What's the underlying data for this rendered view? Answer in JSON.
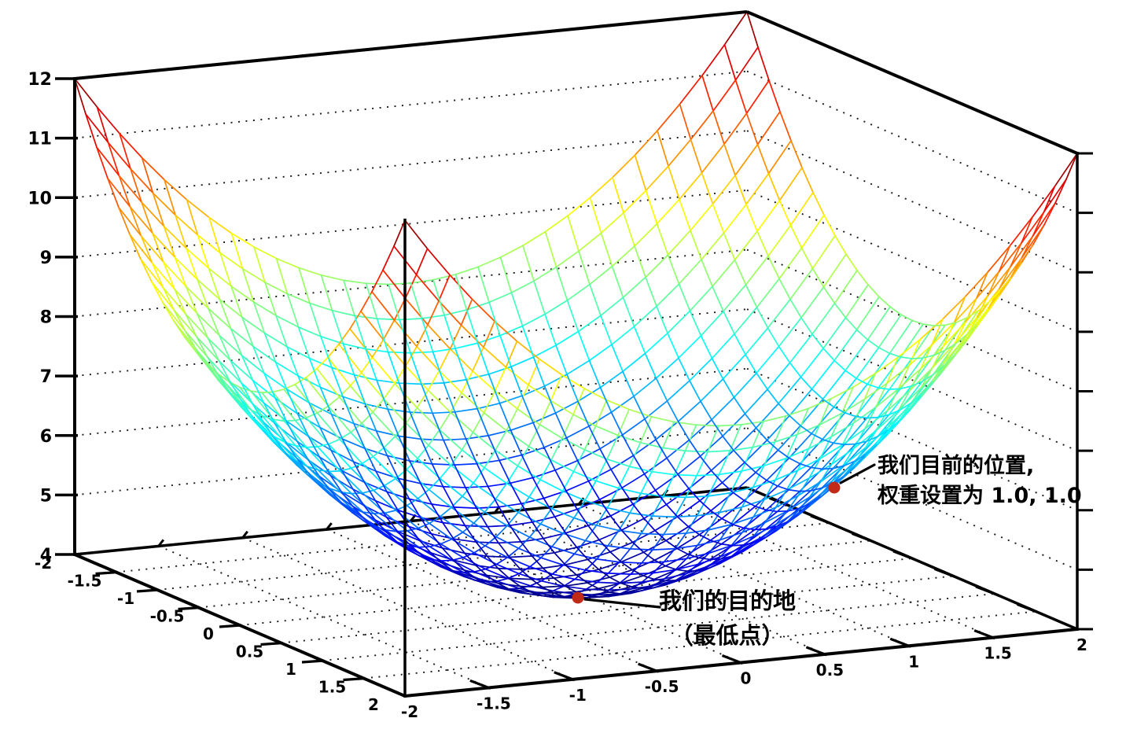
{
  "figure": {
    "background": "#ffffff"
  },
  "chart_data": {
    "type": "surface",
    "projection": "3d",
    "title": "",
    "surface": {
      "z_function": "z = x^2 + y^2 + 4",
      "x_domain": [
        -2,
        2
      ],
      "y_domain": [
        -2,
        2
      ],
      "z_range": [
        4,
        12
      ],
      "grid_divisions": 30,
      "colormap": "jet",
      "style": "wireframe"
    },
    "axes": {
      "x_tick_values": [
        -2,
        -1.5,
        -1,
        -0.5,
        0,
        0.5,
        1,
        1.5,
        2
      ],
      "x_tick_labels": [
        "-2",
        "-1.5",
        "-1",
        "-0.5",
        "0",
        "0.5",
        "1",
        "1.5",
        "2"
      ],
      "y_tick_values": [
        -2,
        -1.5,
        -1,
        -0.5,
        0,
        0.5,
        1,
        1.5,
        2
      ],
      "y_tick_labels": [
        "-2",
        "-1.5",
        "-1",
        "-0.5",
        "0",
        "0.5",
        "1",
        "1.5",
        "2"
      ],
      "z_tick_values": [
        4,
        5,
        6,
        7,
        8,
        9,
        10,
        11,
        12
      ],
      "z_tick_labels": [
        "4",
        "5",
        "6",
        "7",
        "8",
        "9",
        "10",
        "11",
        "12"
      ],
      "wall_grid": "dotted",
      "floor_grid": "dotted",
      "axis_color": "#000000"
    },
    "annotations": [
      {
        "id": "current-position",
        "text_lines": [
          "我们目前的位置,",
          "权重设置为 1.0, 1.0"
        ],
        "point": {
          "x": 1.0,
          "y": 1.0,
          "z": 6.0
        },
        "marker": "dot",
        "marker_color": "#c22a18"
      },
      {
        "id": "destination",
        "text_lines": [
          "我们的目的地",
          "（最低点）"
        ],
        "point": {
          "x": 0.0,
          "y": 0.0,
          "z": 4.0
        },
        "marker": "dot",
        "marker_color": "#c22a18"
      }
    ]
  }
}
